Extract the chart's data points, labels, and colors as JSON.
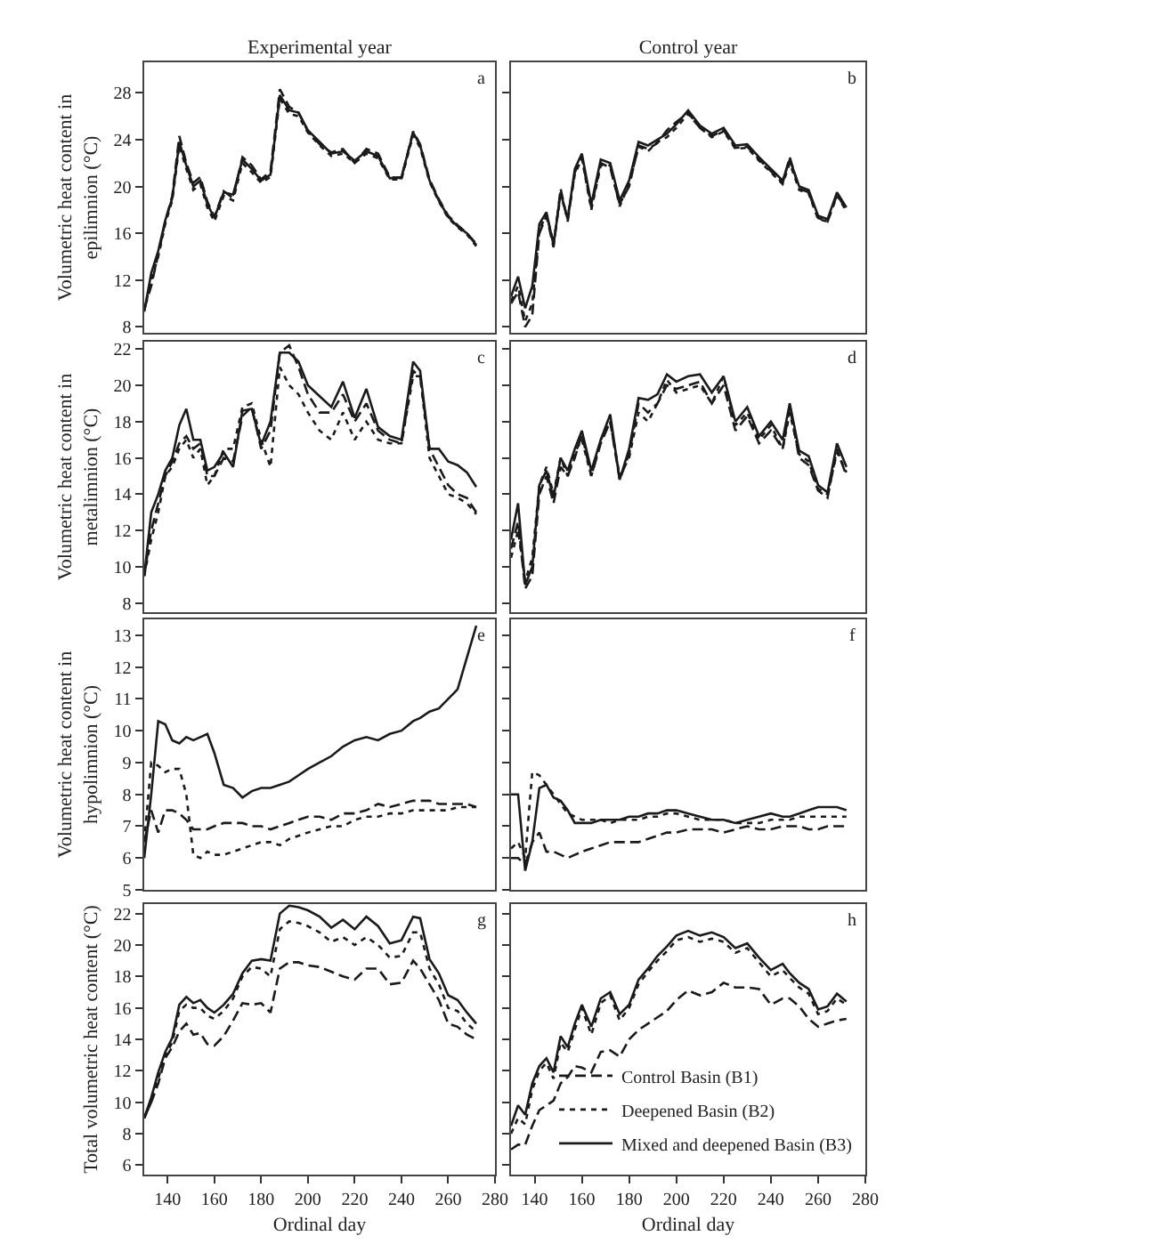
{
  "chart_data": [
    {
      "type": "line",
      "title": "Experimental year",
      "ylabel": "Volumetric heat content in epilimnion (°C)",
      "annotations": [
        "a"
      ],
      "xlim": [
        130,
        280
      ],
      "xticks": [
        140,
        160,
        180,
        200,
        220,
        240,
        260,
        280
      ],
      "ylim": [
        7.5,
        30.6
      ],
      "yticks": [
        8,
        12,
        16,
        20,
        24,
        28
      ],
      "tick_labels": "y",
      "x": [
        130,
        133,
        136,
        139,
        142,
        145,
        148,
        151,
        154,
        157,
        160,
        164,
        168,
        172,
        176,
        180,
        184,
        188,
        192,
        196,
        200,
        205,
        210,
        215,
        220,
        225,
        230,
        235,
        240,
        245,
        248,
        252,
        256,
        260,
        264,
        268,
        272
      ],
      "series": [
        {
          "color": "#1a1a1a",
          "line_style": "dashed",
          "values": [
            9.5,
            11.5,
            14.2,
            17.0,
            19.2,
            24.3,
            22.0,
            20.3,
            20.8,
            18.7,
            17.4,
            19.6,
            19.0,
            22.5,
            21.8,
            20.6,
            21.3,
            28.3,
            26.8,
            26.3,
            24.7,
            23.6,
            22.9,
            23.2,
            22.0,
            23.2,
            22.8,
            20.8,
            20.7,
            24.7,
            23.6,
            20.6,
            18.9,
            17.5,
            16.7,
            16.0,
            15.1
          ]
        },
        {
          "color": "#1a1a1a",
          "line_style": "dotted",
          "values": [
            9.4,
            12.0,
            14.0,
            16.8,
            18.8,
            23.5,
            21.5,
            19.7,
            20.2,
            18.2,
            17.0,
            19.2,
            18.8,
            22.0,
            21.2,
            20.3,
            20.8,
            27.5,
            26.2,
            26.0,
            24.6,
            23.5,
            22.6,
            22.8,
            22.0,
            22.8,
            22.4,
            20.6,
            20.6,
            24.4,
            23.3,
            20.4,
            18.7,
            17.3,
            16.5,
            15.9,
            14.9
          ]
        },
        {
          "color": "#1a1a1a",
          "line_style": "solid",
          "values": [
            9.3,
            12.6,
            14.5,
            17.1,
            19.0,
            23.8,
            21.8,
            20.0,
            20.5,
            18.5,
            17.3,
            19.5,
            19.3,
            22.3,
            21.5,
            20.5,
            21.0,
            27.8,
            26.5,
            26.3,
            24.8,
            23.8,
            22.8,
            23.0,
            22.2,
            23.0,
            22.6,
            20.7,
            20.8,
            24.6,
            23.5,
            20.5,
            18.8,
            17.4,
            16.6,
            16.0,
            15.0
          ]
        }
      ]
    },
    {
      "type": "line",
      "title": "Control year",
      "annotations": [
        "b"
      ],
      "xlim": [
        130,
        280
      ],
      "xticks": [
        140,
        160,
        180,
        200,
        220,
        240,
        260,
        280
      ],
      "ylim": [
        7.5,
        30.6
      ],
      "yticks": [
        8,
        12,
        16,
        20,
        24,
        28
      ],
      "tick_labels": false,
      "x": [
        130,
        133,
        136,
        139,
        142,
        145,
        148,
        151,
        154,
        157,
        160,
        164,
        168,
        172,
        176,
        180,
        184,
        188,
        192,
        196,
        200,
        205,
        210,
        215,
        220,
        225,
        230,
        235,
        240,
        245,
        248,
        252,
        256,
        260,
        264,
        268,
        272
      ],
      "series": [
        {
          "color": "#1a1a1a",
          "line_style": "dashed",
          "values": [
            10.0,
            11.0,
            8.0,
            9.0,
            16.0,
            17.5,
            14.8,
            19.8,
            17.0,
            21.2,
            22.5,
            18.2,
            22.0,
            21.6,
            18.5,
            20.0,
            23.5,
            23.2,
            23.7,
            24.8,
            25.5,
            26.3,
            25.0,
            24.3,
            24.8,
            23.3,
            23.4,
            22.3,
            21.3,
            20.3,
            22.5,
            19.8,
            19.5,
            17.3,
            17.0,
            19.3,
            18.0
          ]
        },
        {
          "color": "#1a1a1a",
          "line_style": "dotted",
          "values": [
            10.2,
            11.5,
            8.5,
            10.0,
            16.3,
            17.6,
            15.2,
            19.2,
            17.4,
            21.0,
            22.4,
            18.0,
            21.8,
            21.8,
            18.3,
            20.2,
            23.4,
            23.0,
            23.8,
            24.2,
            25.0,
            26.2,
            25.0,
            24.2,
            24.7,
            23.2,
            23.3,
            22.2,
            21.2,
            20.2,
            22.0,
            19.7,
            19.4,
            17.2,
            17.0,
            19.2,
            17.9
          ]
        },
        {
          "color": "#1a1a1a",
          "line_style": "solid",
          "values": [
            10.6,
            12.3,
            9.6,
            11.5,
            16.8,
            17.8,
            15.0,
            19.5,
            17.2,
            21.5,
            22.8,
            18.5,
            22.3,
            22.0,
            18.8,
            20.5,
            23.8,
            23.5,
            24.0,
            24.5,
            25.3,
            26.5,
            25.2,
            24.5,
            25.0,
            23.5,
            23.6,
            22.5,
            21.5,
            20.5,
            22.3,
            20.0,
            19.7,
            17.5,
            17.2,
            19.5,
            18.2
          ]
        }
      ]
    },
    {
      "type": "line",
      "ylabel": "Volumetric heat content in metalimnion (°C)",
      "annotations": [
        "c"
      ],
      "xlim": [
        130,
        280
      ],
      "xticks": [
        140,
        160,
        180,
        200,
        220,
        240,
        260,
        280
      ],
      "ylim": [
        7.5,
        22.4
      ],
      "yticks": [
        8,
        10,
        12,
        14,
        16,
        18,
        20,
        22
      ],
      "tick_labels": "y",
      "x": [
        130,
        133,
        136,
        139,
        142,
        145,
        148,
        151,
        154,
        157,
        160,
        164,
        168,
        172,
        176,
        180,
        184,
        188,
        192,
        196,
        200,
        205,
        210,
        215,
        220,
        225,
        230,
        235,
        240,
        245,
        248,
        252,
        256,
        260,
        264,
        268,
        272
      ],
      "series": [
        {
          "color": "#1a1a1a",
          "line_style": "dashed",
          "values": [
            9.5,
            12.0,
            13.5,
            15.0,
            15.8,
            16.8,
            17.2,
            16.5,
            16.8,
            15.0,
            15.0,
            16.0,
            15.8,
            18.3,
            18.8,
            16.5,
            17.5,
            21.8,
            22.2,
            21.0,
            19.5,
            18.5,
            18.5,
            19.5,
            18.0,
            19.0,
            17.5,
            17.0,
            16.8,
            20.8,
            20.5,
            16.5,
            15.5,
            14.5,
            14.0,
            13.8,
            13.0
          ]
        },
        {
          "color": "#1a1a1a",
          "line_style": "dotted",
          "values": [
            9.5,
            11.5,
            13.0,
            15.0,
            15.5,
            16.5,
            17.0,
            16.0,
            16.5,
            14.5,
            15.0,
            16.5,
            16.5,
            18.8,
            19.0,
            17.0,
            15.5,
            21.0,
            20.0,
            19.5,
            18.5,
            17.5,
            17.0,
            18.5,
            17.0,
            18.0,
            17.0,
            16.8,
            16.8,
            20.5,
            20.5,
            16.0,
            15.0,
            14.0,
            13.8,
            13.5,
            12.9
          ]
        },
        {
          "color": "#1a1a1a",
          "line_style": "solid",
          "values": [
            9.5,
            13.0,
            14.0,
            15.3,
            16.0,
            17.8,
            18.7,
            17.0,
            17.0,
            15.3,
            15.5,
            16.3,
            15.5,
            18.6,
            18.7,
            16.7,
            18.0,
            21.8,
            21.8,
            21.3,
            20.0,
            19.4,
            18.8,
            20.2,
            18.2,
            19.8,
            17.7,
            17.2,
            17.0,
            21.3,
            20.8,
            16.5,
            16.5,
            15.8,
            15.6,
            15.2,
            14.4
          ]
        }
      ]
    },
    {
      "type": "line",
      "annotations": [
        "d"
      ],
      "xlim": [
        130,
        280
      ],
      "xticks": [
        140,
        160,
        180,
        200,
        220,
        240,
        260,
        280
      ],
      "ylim": [
        7.5,
        22.4
      ],
      "yticks": [
        8,
        10,
        12,
        14,
        16,
        18,
        20,
        22
      ],
      "tick_labels": false,
      "x": [
        130,
        133,
        136,
        139,
        142,
        145,
        148,
        151,
        154,
        157,
        160,
        164,
        168,
        172,
        176,
        180,
        184,
        188,
        192,
        196,
        200,
        205,
        210,
        215,
        220,
        225,
        230,
        235,
        240,
        245,
        248,
        252,
        256,
        260,
        264,
        268,
        272
      ],
      "series": [
        {
          "color": "#1a1a1a",
          "line_style": "dashed",
          "values": [
            11.0,
            12.5,
            8.8,
            9.5,
            14.0,
            15.0,
            13.5,
            15.5,
            15.0,
            16.0,
            17.3,
            15.0,
            16.8,
            18.0,
            14.8,
            16.2,
            19.0,
            18.5,
            19.0,
            20.0,
            19.8,
            20.0,
            20.2,
            19.0,
            20.0,
            17.5,
            18.3,
            16.8,
            17.5,
            16.5,
            18.8,
            16.0,
            15.6,
            14.2,
            13.8,
            16.5,
            15.0
          ]
        },
        {
          "color": "#1a1a1a",
          "line_style": "dotted",
          "values": [
            10.5,
            12.0,
            9.2,
            10.5,
            14.5,
            15.5,
            14.0,
            16.0,
            15.0,
            16.3,
            17.0,
            15.0,
            17.0,
            18.0,
            15.0,
            16.0,
            18.5,
            18.0,
            19.0,
            20.3,
            19.6,
            19.8,
            20.0,
            19.0,
            20.5,
            17.8,
            18.5,
            17.0,
            17.8,
            16.5,
            18.5,
            16.2,
            15.8,
            14.3,
            14.0,
            16.3,
            15.2
          ]
        },
        {
          "color": "#1a1a1a",
          "line_style": "solid",
          "values": [
            11.5,
            13.5,
            9.0,
            10.0,
            14.5,
            15.3,
            13.8,
            16.0,
            15.3,
            16.5,
            17.5,
            15.3,
            17.0,
            18.4,
            14.8,
            16.5,
            19.3,
            19.2,
            19.5,
            20.6,
            20.2,
            20.5,
            20.6,
            19.6,
            20.5,
            18.0,
            18.8,
            17.2,
            18.0,
            17.0,
            19.0,
            16.4,
            16.1,
            14.5,
            14.1,
            16.8,
            15.5
          ]
        }
      ]
    },
    {
      "type": "line",
      "ylabel": "Volumetric heat content in hypolimnion (°C)",
      "annotations": [
        "e"
      ],
      "xlim": [
        130,
        280
      ],
      "xticks": [
        140,
        160,
        180,
        200,
        220,
        240,
        260,
        280
      ],
      "ylim": [
        5,
        13.5
      ],
      "yticks": [
        5,
        6,
        7,
        8,
        9,
        10,
        11,
        12,
        13
      ],
      "tick_labels": "y",
      "x": [
        130,
        133,
        136,
        139,
        142,
        145,
        148,
        151,
        154,
        157,
        160,
        164,
        168,
        172,
        176,
        180,
        184,
        188,
        192,
        196,
        200,
        205,
        210,
        215,
        220,
        225,
        230,
        235,
        240,
        245,
        248,
        252,
        256,
        260,
        264,
        268,
        272
      ],
      "series": [
        {
          "color": "#1a1a1a",
          "line_style": "dashed",
          "values": [
            6.5,
            7.5,
            6.8,
            7.5,
            7.5,
            7.4,
            7.2,
            6.9,
            6.9,
            6.9,
            7.0,
            7.1,
            7.1,
            7.1,
            7.0,
            7.0,
            6.9,
            7.0,
            7.1,
            7.2,
            7.3,
            7.3,
            7.2,
            7.4,
            7.4,
            7.5,
            7.7,
            7.6,
            7.7,
            7.8,
            7.8,
            7.8,
            7.7,
            7.7,
            7.7,
            7.7,
            7.6
          ]
        },
        {
          "color": "#1a1a1a",
          "line_style": "dotted",
          "values": [
            6.5,
            9.0,
            8.9,
            8.7,
            8.8,
            8.8,
            8.0,
            6.1,
            6.0,
            6.2,
            6.1,
            6.1,
            6.2,
            6.3,
            6.4,
            6.5,
            6.5,
            6.4,
            6.6,
            6.7,
            6.8,
            6.9,
            7.0,
            7.0,
            7.2,
            7.3,
            7.3,
            7.4,
            7.4,
            7.5,
            7.5,
            7.5,
            7.5,
            7.5,
            7.6,
            7.6,
            7.6
          ]
        },
        {
          "color": "#1a1a1a",
          "line_style": "solid",
          "values": [
            6.0,
            8.0,
            10.3,
            10.2,
            9.7,
            9.6,
            9.8,
            9.7,
            9.8,
            9.9,
            9.3,
            8.3,
            8.2,
            7.9,
            8.1,
            8.2,
            8.2,
            8.3,
            8.4,
            8.6,
            8.8,
            9.0,
            9.2,
            9.5,
            9.7,
            9.8,
            9.7,
            9.9,
            10.0,
            10.3,
            10.4,
            10.6,
            10.7,
            11.0,
            11.3,
            12.3,
            13.3
          ]
        }
      ]
    },
    {
      "type": "line",
      "annotations": [
        "f"
      ],
      "xlim": [
        130,
        280
      ],
      "xticks": [
        140,
        160,
        180,
        200,
        220,
        240,
        260,
        280
      ],
      "ylim": [
        5,
        13.5
      ],
      "yticks": [
        5,
        6,
        7,
        8,
        9,
        10,
        11,
        12,
        13
      ],
      "tick_labels": false,
      "x": [
        130,
        133,
        136,
        139,
        142,
        145,
        148,
        151,
        154,
        157,
        160,
        164,
        168,
        172,
        176,
        180,
        184,
        188,
        192,
        196,
        200,
        205,
        210,
        215,
        220,
        225,
        230,
        235,
        240,
        245,
        248,
        252,
        256,
        260,
        264,
        268,
        272
      ],
      "series": [
        {
          "color": "#1a1a1a",
          "line_style": "dashed",
          "values": [
            6.0,
            6.0,
            5.8,
            6.5,
            6.8,
            6.2,
            6.2,
            6.1,
            6.0,
            6.1,
            6.2,
            6.3,
            6.4,
            6.5,
            6.5,
            6.5,
            6.5,
            6.6,
            6.7,
            6.8,
            6.8,
            6.9,
            6.9,
            6.9,
            6.8,
            6.9,
            7.0,
            6.9,
            6.9,
            7.0,
            7.0,
            7.0,
            6.9,
            6.9,
            7.0,
            7.0,
            7.0
          ]
        },
        {
          "color": "#1a1a1a",
          "line_style": "dotted",
          "values": [
            6.3,
            6.5,
            6.0,
            8.7,
            8.6,
            8.3,
            8.0,
            7.7,
            7.4,
            7.3,
            7.2,
            7.2,
            7.2,
            7.1,
            7.2,
            7.2,
            7.2,
            7.3,
            7.3,
            7.4,
            7.4,
            7.3,
            7.2,
            7.2,
            7.2,
            7.1,
            7.1,
            7.1,
            7.2,
            7.2,
            7.2,
            7.3,
            7.3,
            7.3,
            7.3,
            7.3,
            7.3
          ]
        },
        {
          "color": "#1a1a1a",
          "line_style": "solid",
          "values": [
            8.0,
            8.0,
            5.6,
            6.5,
            8.2,
            8.3,
            7.9,
            7.8,
            7.5,
            7.1,
            7.1,
            7.1,
            7.2,
            7.2,
            7.2,
            7.3,
            7.3,
            7.4,
            7.4,
            7.5,
            7.5,
            7.4,
            7.3,
            7.2,
            7.2,
            7.1,
            7.2,
            7.3,
            7.4,
            7.3,
            7.3,
            7.4,
            7.5,
            7.6,
            7.6,
            7.6,
            7.5
          ]
        }
      ]
    },
    {
      "type": "line",
      "xlabel": "Ordinal day",
      "ylabel": "Total volumetric heat content (°C)",
      "annotations": [
        "g"
      ],
      "xlim": [
        130,
        280
      ],
      "xticks": [
        140,
        160,
        180,
        200,
        220,
        240,
        260,
        280
      ],
      "ylim": [
        5.4,
        22.6
      ],
      "yticks": [
        6,
        8,
        10,
        12,
        14,
        16,
        18,
        20,
        22
      ],
      "x": [
        130,
        133,
        136,
        139,
        142,
        145,
        148,
        151,
        154,
        157,
        160,
        164,
        168,
        172,
        176,
        180,
        184,
        188,
        192,
        196,
        200,
        205,
        210,
        215,
        220,
        225,
        230,
        235,
        240,
        245,
        248,
        252,
        256,
        260,
        264,
        268,
        272
      ],
      "series": [
        {
          "color": "#1a1a1a",
          "line_style": "dashed",
          "values": [
            9.0,
            10.0,
            11.2,
            12.8,
            13.5,
            14.5,
            15.0,
            14.3,
            14.4,
            13.7,
            13.6,
            14.2,
            15.2,
            16.3,
            16.2,
            16.3,
            15.7,
            18.5,
            18.9,
            18.9,
            18.7,
            18.6,
            18.3,
            18.0,
            17.8,
            18.5,
            18.5,
            17.5,
            17.6,
            19.0,
            18.5,
            17.5,
            16.5,
            15.0,
            14.8,
            14.3,
            14.0
          ]
        },
        {
          "color": "#1a1a1a",
          "line_style": "dotted",
          "values": [
            9.0,
            10.0,
            11.5,
            13.0,
            13.8,
            15.8,
            16.2,
            16.0,
            16.0,
            15.5,
            15.3,
            15.8,
            16.6,
            18.0,
            18.6,
            18.5,
            18.0,
            21.0,
            21.5,
            21.4,
            21.2,
            20.8,
            20.2,
            20.5,
            20.0,
            20.5,
            20.0,
            19.2,
            19.3,
            20.8,
            20.8,
            18.5,
            17.5,
            16.0,
            15.8,
            15.0,
            14.5
          ]
        },
        {
          "color": "#1a1a1a",
          "line_style": "solid",
          "values": [
            9.0,
            10.3,
            11.9,
            13.2,
            14.1,
            16.2,
            16.7,
            16.3,
            16.5,
            16.0,
            15.7,
            16.2,
            16.9,
            18.2,
            19.0,
            19.1,
            19.0,
            22.0,
            22.5,
            22.4,
            22.2,
            21.8,
            21.1,
            21.6,
            21.0,
            21.8,
            21.2,
            20.1,
            20.3,
            21.8,
            21.7,
            19.1,
            18.2,
            16.8,
            16.5,
            15.7,
            15.0
          ]
        }
      ]
    },
    {
      "type": "line",
      "xlabel": "Ordinal day",
      "annotations": [
        "h"
      ],
      "legend": "bottom right",
      "xlim": [
        130,
        280
      ],
      "xticks": [
        140,
        160,
        180,
        200,
        220,
        240,
        260,
        280
      ],
      "ylim": [
        5.4,
        22.6
      ],
      "yticks": [
        6,
        8,
        10,
        12,
        14,
        16,
        18,
        20,
        22
      ],
      "tick_labels": "x",
      "x": [
        130,
        133,
        136,
        139,
        142,
        145,
        148,
        151,
        154,
        157,
        160,
        164,
        168,
        172,
        176,
        180,
        184,
        188,
        192,
        196,
        200,
        205,
        210,
        215,
        220,
        225,
        230,
        235,
        240,
        245,
        248,
        252,
        256,
        260,
        264,
        268,
        272
      ],
      "series": [
        {
          "name": "Control Basin (B1)",
          "color": "#1a1a1a",
          "line_style": "dashed",
          "values": [
            7.0,
            7.3,
            7.3,
            8.5,
            9.5,
            9.8,
            10.1,
            11.2,
            11.6,
            12.3,
            12.2,
            11.9,
            13.2,
            13.3,
            12.9,
            14.0,
            14.6,
            15.0,
            15.4,
            15.8,
            16.5,
            17.1,
            16.8,
            17.0,
            17.6,
            17.3,
            17.3,
            17.2,
            16.2,
            16.6,
            16.6,
            16.1,
            15.3,
            14.8,
            15.0,
            15.2,
            15.3
          ]
        },
        {
          "name": "Deepened Basin (B2)",
          "color": "#1a1a1a",
          "line_style": "dotted",
          "values": [
            8.0,
            9.0,
            8.6,
            10.8,
            12.0,
            12.5,
            11.5,
            13.8,
            13.2,
            14.6,
            16.0,
            14.3,
            16.3,
            16.8,
            15.2,
            16.0,
            17.5,
            18.3,
            19.0,
            19.6,
            20.3,
            20.5,
            20.2,
            20.4,
            20.2,
            19.5,
            19.8,
            18.9,
            18.0,
            18.4,
            17.9,
            17.3,
            16.9,
            15.6,
            15.8,
            16.6,
            16.2
          ]
        },
        {
          "name": "Mixed and deepened Basin (B3)",
          "color": "#1a1a1a",
          "line_style": "solid",
          "values": [
            8.5,
            9.8,
            9.2,
            11.2,
            12.3,
            12.8,
            11.9,
            14.2,
            13.5,
            15.0,
            16.2,
            14.8,
            16.6,
            17.0,
            15.6,
            16.2,
            17.8,
            18.5,
            19.3,
            19.9,
            20.6,
            20.9,
            20.6,
            20.8,
            20.5,
            19.8,
            20.1,
            19.2,
            18.4,
            18.8,
            18.2,
            17.6,
            17.2,
            15.9,
            16.1,
            16.9,
            16.4
          ]
        }
      ]
    }
  ]
}
